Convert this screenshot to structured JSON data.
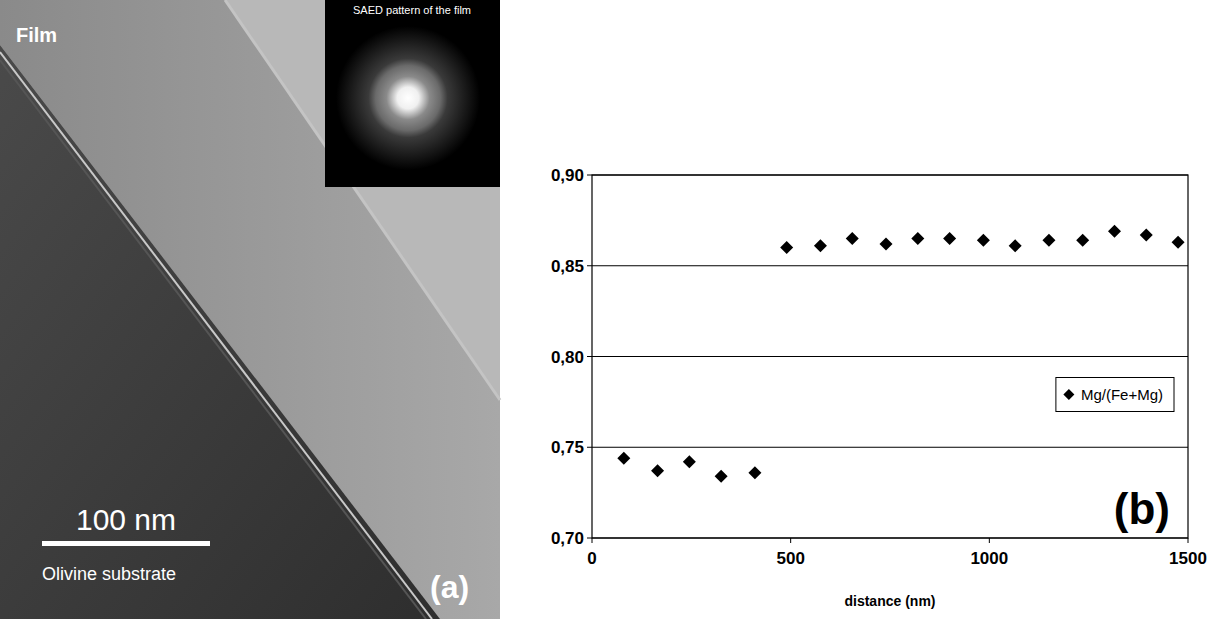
{
  "chart_data": {
    "type": "scatter",
    "panel_label": "(b)",
    "x_label": "distance (nm)",
    "x": [
      80,
      165,
      245,
      325,
      410,
      490,
      575,
      655,
      740,
      820,
      900,
      985,
      1065,
      1150,
      1235,
      1315,
      1395,
      1475
    ],
    "series": [
      {
        "name": "Mg/(Fe+Mg)",
        "color": "#000000",
        "marker": "diamond",
        "values": [
          0.744,
          0.737,
          0.742,
          0.734,
          0.736,
          0.86,
          0.861,
          0.865,
          0.862,
          0.865,
          0.865,
          0.864,
          0.861,
          0.864,
          0.864,
          0.869,
          0.867,
          0.863
        ]
      }
    ],
    "xlim": [
      0,
      1500
    ],
    "xticks": [
      0,
      500,
      1000,
      1500
    ],
    "ylim": [
      0.7,
      0.9
    ],
    "yticks": [
      {
        "value": 0.7,
        "label": "0,70"
      },
      {
        "value": 0.75,
        "label": "0,75"
      },
      {
        "value": 0.8,
        "label": "0,80"
      },
      {
        "value": 0.85,
        "label": "0,85"
      },
      {
        "value": 0.9,
        "label": "0,90"
      }
    ],
    "grid": true,
    "legend": "right"
  },
  "micrograph": {
    "panel_label": "(a)",
    "film_label": "Film",
    "inset_label": "SAED pattern  of the film",
    "scale_bar_label": "100 nm",
    "substrate_label": "Olivine substrate"
  }
}
